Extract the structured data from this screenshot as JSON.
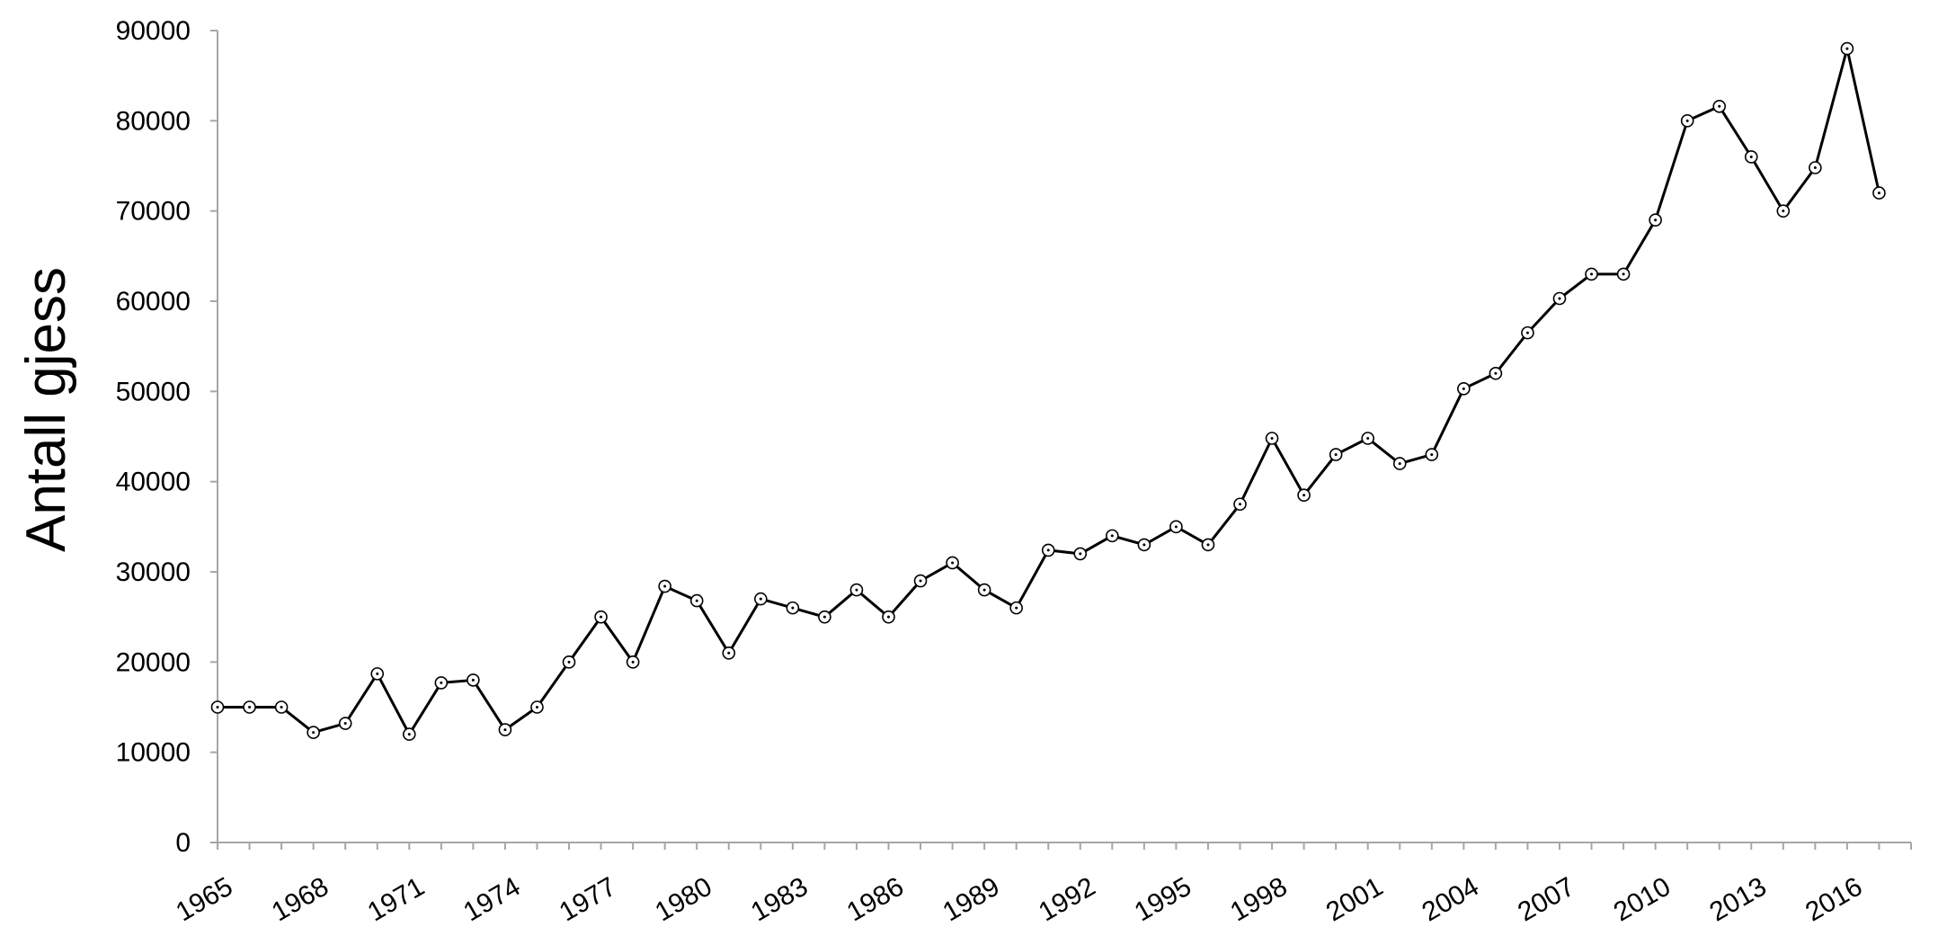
{
  "chart_data": {
    "type": "line",
    "title": "",
    "xlabel": "",
    "ylabel": "Antall gjess",
    "ylim": [
      0,
      90000
    ],
    "yticks": [
      0,
      10000,
      20000,
      30000,
      40000,
      50000,
      60000,
      70000,
      80000,
      90000
    ],
    "xlim": [
      1965,
      2018
    ],
    "xticks": [
      1965,
      1968,
      1971,
      1974,
      1977,
      1980,
      1983,
      1986,
      1989,
      1992,
      1995,
      1998,
      2001,
      2004,
      2007,
      2010,
      2013,
      2016
    ],
    "grid": false,
    "marker": "open-circle",
    "line_color": "#000000",
    "axis_color": "#a6a6a6",
    "series": [
      {
        "x": [
          1965,
          1966,
          1967,
          1968,
          1969,
          1970,
          1971,
          1972,
          1973,
          1974,
          1975,
          1976,
          1977,
          1978,
          1979,
          1980,
          1981,
          1982,
          1983,
          1984,
          1985,
          1986,
          1987,
          1988,
          1989,
          1990,
          1991,
          1992,
          1993,
          1994,
          1995,
          1996,
          1997,
          1998,
          1999,
          2000,
          2001,
          2002,
          2003,
          2004,
          2005,
          2006,
          2007,
          2008,
          2009,
          2010,
          2011,
          2012,
          2013,
          2014,
          2015,
          2016,
          2017
        ],
        "values": [
          15000,
          15000,
          15000,
          12200,
          13200,
          18700,
          12000,
          17700,
          18000,
          12500,
          15000,
          20000,
          25000,
          20000,
          28400,
          26800,
          21000,
          27000,
          26000,
          25000,
          28000,
          25000,
          29000,
          31000,
          28000,
          26000,
          32400,
          32000,
          34000,
          33000,
          35000,
          33000,
          37500,
          44800,
          38500,
          43000,
          44800,
          42000,
          43000,
          50300,
          52000,
          56500,
          60300,
          63000,
          63000,
          69000,
          80000,
          81600,
          76000,
          70000,
          74800,
          88000,
          72000
        ]
      }
    ]
  }
}
